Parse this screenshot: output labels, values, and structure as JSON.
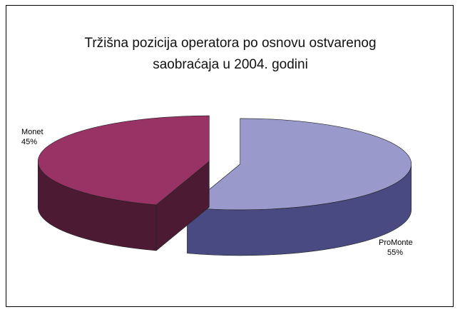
{
  "chart_data": {
    "type": "pie",
    "title_line1": "Tržišna pozicija operatora po osnovu ostvarenog",
    "title_line2": "saobraćaja u 2004. godini",
    "slices": [
      {
        "label": "ProMonte",
        "value": 55,
        "value_label": "55%",
        "top_color": "#9999cc",
        "side_color": "#4a4a82"
      },
      {
        "label": "Monet",
        "value": 45,
        "value_label": "45%",
        "top_color": "#993366",
        "side_color": "#4c1a33"
      }
    ],
    "legend": "none",
    "style": "3d-exploded"
  }
}
